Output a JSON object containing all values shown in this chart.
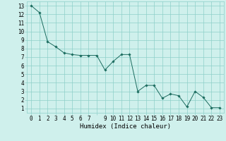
{
  "x": [
    0,
    1,
    2,
    3,
    4,
    5,
    6,
    7,
    8,
    9,
    10,
    11,
    12,
    13,
    14,
    15,
    16,
    17,
    18,
    19,
    20,
    21,
    22,
    23
  ],
  "y": [
    13,
    12.2,
    8.8,
    8.2,
    7.5,
    7.3,
    7.2,
    7.2,
    7.2,
    5.5,
    6.5,
    7.3,
    7.3,
    3.0,
    3.7,
    3.7,
    2.2,
    2.7,
    2.5,
    1.2,
    3.0,
    2.3,
    1.1,
    1.1
  ],
  "line_color": "#1a6b5e",
  "marker": "D",
  "marker_size": 1.8,
  "bg_color": "#cff0ec",
  "grid_color": "#8ecfc9",
  "xlabel": "Humidex (Indice chaleur)",
  "xlabel_fontsize": 6.5,
  "tick_fontsize": 5.5,
  "ylabel_ticks": [
    1,
    2,
    3,
    4,
    5,
    6,
    7,
    8,
    9,
    10,
    11,
    12,
    13
  ],
  "xtick_labels": [
    "0",
    "1",
    "2",
    "3",
    "4",
    "5",
    "6",
    "7",
    "",
    "9",
    "10",
    "11",
    "12",
    "13",
    "14",
    "15",
    "16",
    "17",
    "18",
    "19",
    "20",
    "21",
    "22",
    "23"
  ],
  "xlim": [
    -0.5,
    23.5
  ],
  "ylim": [
    0.5,
    13.5
  ],
  "xticks": [
    0,
    1,
    2,
    3,
    4,
    5,
    6,
    7,
    8,
    9,
    10,
    11,
    12,
    13,
    14,
    15,
    16,
    17,
    18,
    19,
    20,
    21,
    22,
    23
  ]
}
